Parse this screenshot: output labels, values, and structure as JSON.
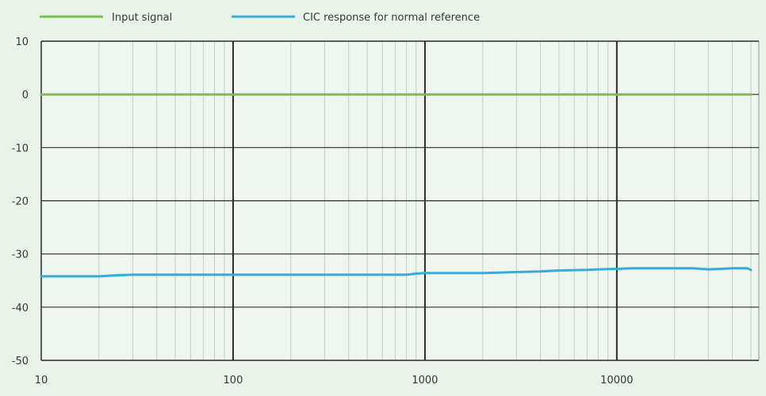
{
  "chart_data": {
    "type": "line",
    "xscale": "log",
    "xlim": [
      10,
      55000
    ],
    "ylim": [
      -50,
      10
    ],
    "xticks": [
      10,
      100,
      1000,
      10000
    ],
    "xtick_labels": [
      "10",
      "100",
      "1000",
      "10000"
    ],
    "yticks": [
      10,
      0,
      -10,
      -20,
      -30,
      -40,
      -50
    ],
    "ytick_labels": [
      "10",
      "0",
      "-10",
      "-20",
      "-30",
      "-40",
      "-50"
    ],
    "grid": true,
    "legend_position": "top-left",
    "series": [
      {
        "name": "Input signal",
        "color": "#7dbd4c",
        "x": [
          10,
          100,
          1000,
          10000,
          50000
        ],
        "y": [
          0,
          0,
          0,
          0,
          0
        ]
      },
      {
        "name": "CIC response for normal reference",
        "color": "#3aaad9",
        "x": [
          10,
          20,
          25,
          30,
          50,
          100,
          200,
          500,
          800,
          900,
          1000,
          2000,
          3000,
          4000,
          5000,
          7000,
          8000,
          10000,
          12000,
          15000,
          20000,
          25000,
          30000,
          35000,
          40000,
          48000,
          50000
        ],
        "y": [
          -34.2,
          -34.2,
          -34.0,
          -33.9,
          -33.9,
          -33.9,
          -33.9,
          -33.9,
          -33.9,
          -33.7,
          -33.6,
          -33.6,
          -33.4,
          -33.3,
          -33.1,
          -33.0,
          -32.9,
          -32.8,
          -32.7,
          -32.7,
          -32.7,
          -32.7,
          -32.9,
          -32.8,
          -32.7,
          -32.7,
          -33.0
        ]
      }
    ]
  }
}
